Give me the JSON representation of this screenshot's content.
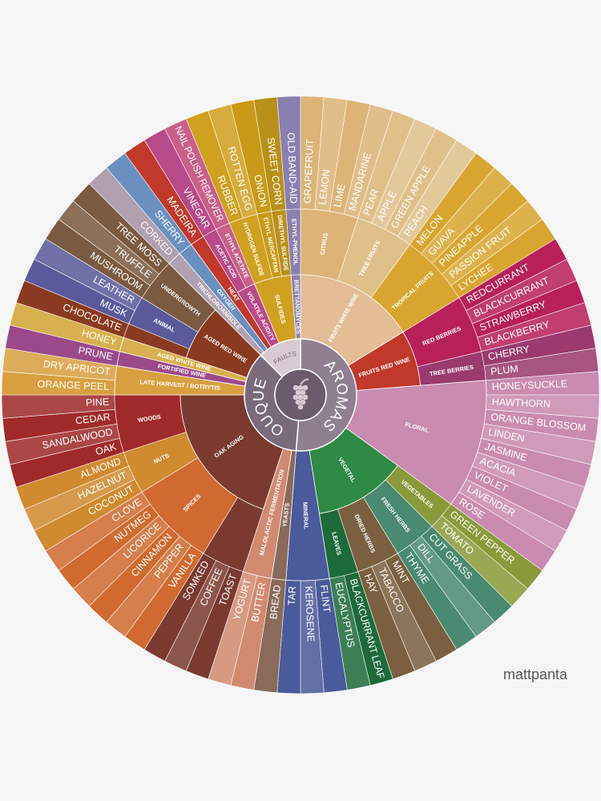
{
  "center": {
    "aromas": "AROMAS",
    "bouquet": "BOUQUET",
    "faults": "FAULTS"
  },
  "categories": [
    {
      "label": "FRUITS WHITE WINE",
      "groups": [
        {
          "label": "CITRUS",
          "items": [
            "GRAPEFRUIT",
            "LEMON",
            "LIME",
            "MANDARINE"
          ]
        },
        {
          "label": "TREE FRUITS",
          "items": [
            "PEAR",
            "APPLE",
            "GREEN APPLE",
            "PEACH"
          ]
        },
        {
          "label": "TROPICAL FRUITS",
          "items": [
            "MELON",
            "GUAVA",
            "PINEAPPLE",
            "PASSION FRUIT",
            "LYCHEE"
          ]
        }
      ]
    },
    {
      "label": "FRUITS RED WINE",
      "groups": [
        {
          "label": "RED BERRIES",
          "items": [
            "REDCURRANT",
            "BLACKCURRANT",
            "STRAWBERRY",
            "BLACKBERRY"
          ]
        },
        {
          "label": "TREE BERRIES",
          "items": [
            "CHERRY",
            "PLUM"
          ]
        }
      ]
    },
    {
      "label": "FLORAL",
      "items": [
        "HONEYSUCKLE",
        "HAWTHORN",
        "ORANGE BLOSSOM",
        "LINDEN",
        "JASMINE",
        "ACACIA",
        "VIOLET",
        "LAVENDER",
        "ROSE"
      ]
    },
    {
      "label": "VEGETAL",
      "groups": [
        {
          "label": "VEGETABLES",
          "items": [
            "GREEN PEPPER",
            "TOMATO"
          ]
        },
        {
          "label": "FRESH HERBS",
          "items": [
            "CUT GRASS",
            "DILL",
            "THYME"
          ]
        },
        {
          "label": "DRIED HERBS",
          "items": [
            "MINT",
            "TABACCO",
            "HAY"
          ]
        },
        {
          "label": "LEAVES",
          "items": [
            "BLACKCURRANT LEAF",
            "EUCALYPTUS"
          ]
        }
      ]
    },
    {
      "label": "MINERAL",
      "items": [
        "FLINT",
        "KEROSENE",
        "TAR"
      ]
    },
    {
      "label": "YEASTS",
      "items": [
        "BREAD"
      ]
    },
    {
      "label": "MALOLACTIC FERMENTATION",
      "items": [
        "BUTTER",
        "YOGURT"
      ]
    },
    {
      "label": "OAK AGING",
      "groups": [
        {
          "items": [
            "TOAST",
            "COFFEE",
            "SOMKED"
          ]
        },
        {
          "label": "SPICES",
          "items": [
            "VANILLA",
            "PEPPER",
            "CINNAMON",
            "LICORICE",
            "NUTMEG",
            "CLOVE"
          ]
        },
        {
          "label": "NUTS",
          "items": [
            "COCONUT",
            "HAZELNUT",
            "ALMOND"
          ]
        },
        {
          "label": "WOODS",
          "items": [
            "OAK",
            "SANDALWOOD",
            "CEDAR",
            "PINE"
          ]
        }
      ]
    },
    {
      "label": "LATE HARVEST / BOTRYTIS",
      "items": [
        "ORANGE PEEL",
        "DRY APRICOT"
      ]
    },
    {
      "label": "FORTIFIED WINE",
      "items": [
        "PRUNE"
      ]
    },
    {
      "label": "AGED WHITE WINE",
      "items": [
        "HONEY"
      ]
    },
    {
      "label": "AGED RED WINE",
      "groups": [
        {
          "items": [
            "CHOCOLATE"
          ]
        },
        {
          "label": "ANIMAL",
          "items": [
            "MUSK",
            "LEATHER"
          ]
        },
        {
          "label": "UNDERGROWTH",
          "items": [
            "MUSHROOM",
            "TRUFFLE",
            "TREE MOSS"
          ]
        }
      ]
    },
    {
      "label": "TRICHLOROANISOLE",
      "items": [
        "CORKED"
      ]
    },
    {
      "label": "OXYGEN",
      "items": [
        "SHERRY"
      ]
    },
    {
      "label": "HEAT",
      "items": [
        "MADEIRA"
      ]
    },
    {
      "label": "VOLATILE ACIDITY",
      "groups": [
        {
          "label": "ACETIC ACID",
          "items": [
            "VINEGAR"
          ]
        },
        {
          "label": "ETHYL ACETATE",
          "items": [
            "NAIL POLISH REMOVER"
          ]
        }
      ]
    },
    {
      "label": "SULFIDES",
      "groups": [
        {
          "label": "HYDROGEN SULFIDE",
          "items": [
            "RUBBER",
            "ROTTEN EGG"
          ]
        },
        {
          "label": "ETHYL MERCAPTAN",
          "items": [
            "ONION"
          ]
        },
        {
          "label": "DIMETHYL SULFIDE",
          "items": [
            "SWEET CORN"
          ]
        }
      ]
    },
    {
      "label": "BRETTANOMYCES",
      "groups": [
        {
          "label": "ETHYL-PHENOL",
          "items": [
            "OLD BAND-AID"
          ]
        }
      ]
    }
  ],
  "watermark": "mattpanta"
}
